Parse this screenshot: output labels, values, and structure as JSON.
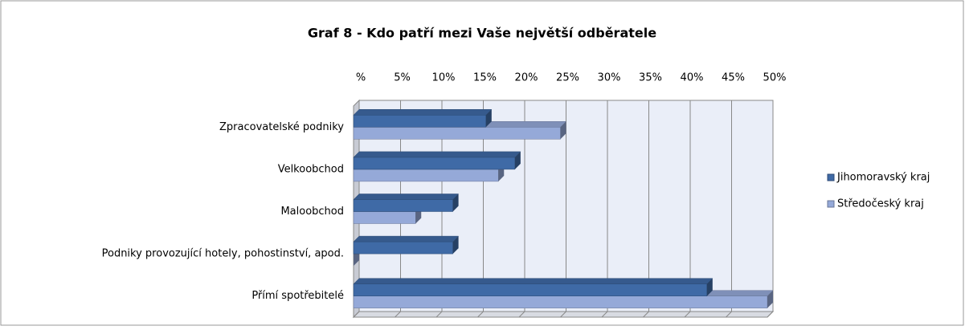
{
  "chart_data": {
    "type": "bar",
    "orientation": "horizontal",
    "title": "Graf 8 - Kdo patří mezi Vaše největší odběratele",
    "categories": [
      "Zpracovatelské podniky",
      "Velkoobchod",
      "Maloobchod",
      "Podniky provozující hotely, pohostinství,  apod.",
      "Přímí spotřebitelé"
    ],
    "series": [
      {
        "name": "Jihomoravský kraj",
        "color": "#3f6aa6",
        "values": [
          16,
          19.5,
          12,
          12,
          42.7
        ]
      },
      {
        "name": "Středočeský kraj",
        "color": "#95a9d8",
        "values": [
          25,
          17.5,
          7.5,
          0,
          50
        ]
      }
    ],
    "xlim": [
      0,
      50
    ],
    "xticks": [
      {
        "value": 0,
        "label": "%"
      },
      {
        "value": 5,
        "label": "5%"
      },
      {
        "value": 10,
        "label": "10%"
      },
      {
        "value": 15,
        "label": "15%"
      },
      {
        "value": 20,
        "label": "20%"
      },
      {
        "value": 25,
        "label": "25%"
      },
      {
        "value": 30,
        "label": "30%"
      },
      {
        "value": 35,
        "label": "35%"
      },
      {
        "value": 40,
        "label": "40%"
      },
      {
        "value": 45,
        "label": "45%"
      },
      {
        "value": 50,
        "label": "50%"
      }
    ],
    "grid": true,
    "legend": "right"
  }
}
